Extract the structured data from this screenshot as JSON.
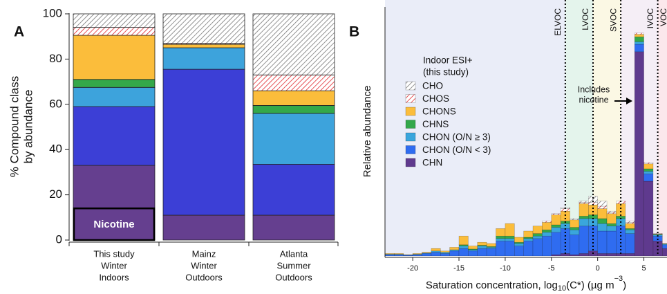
{
  "chart_data": [
    {
      "type": "stacked-bar",
      "panel_label": "A",
      "ylabel": [
        "% Compound class",
        "by abundance"
      ],
      "categories": [
        [
          "This study",
          "Winter",
          "Indoors"
        ],
        [
          "Mainz",
          "Winter",
          "Outdoors"
        ],
        [
          "Atlanta",
          "Summer",
          "Outdoors"
        ]
      ],
      "ylim": [
        0,
        100
      ],
      "yticks": [
        0,
        20,
        40,
        60,
        80,
        100
      ],
      "series": [
        {
          "color": "#653f8f",
          "values": [
            33,
            11,
            11
          ]
        },
        {
          "color": "#3c3fd6",
          "values": [
            26,
            64.5,
            22.5
          ]
        },
        {
          "color": "#3da3dc",
          "values": [
            8.5,
            9.5,
            22.5
          ]
        },
        {
          "color": "#34a84a",
          "values": [
            3.5,
            0,
            3.5
          ]
        },
        {
          "color": "#fbbd3b",
          "values": [
            19.5,
            1.5,
            6.5
          ]
        },
        {
          "color": "#e0262b",
          "hatch": true,
          "values": [
            3.5,
            0.5,
            7
          ]
        },
        {
          "color": "#777777",
          "hatch": true,
          "values": [
            6,
            13,
            27
          ]
        }
      ],
      "highlight": {
        "label": "Nicotine",
        "value": 14
      }
    },
    {
      "type": "stacked-histogram",
      "panel_label": "B",
      "xlabel": [
        "Saturation concentration, log",
        "10",
        "(C*) (µg m",
        "−3",
        ")"
      ],
      "ylabel": "Relative abundance",
      "xlim": [
        -23,
        7.5
      ],
      "ylim": [
        0,
        100
      ],
      "xticks": [
        -20,
        -15,
        -10,
        -5,
        0,
        5
      ],
      "bins": [
        -23,
        -22,
        -21,
        -20,
        -19,
        -18,
        -17,
        -16,
        -15,
        -14,
        -13,
        -12,
        -11,
        -10,
        -9,
        -8,
        -7,
        -6,
        -5,
        -4,
        -3,
        -2,
        -1,
        0,
        1,
        2,
        3,
        4,
        5,
        6,
        7,
        8
      ],
      "legend_title": [
        "Indoor ESI+",
        "(this study)"
      ],
      "series": [
        {
          "name": "CHN",
          "color": "#5f3a8e",
          "values": [
            0,
            0,
            0,
            0,
            0,
            0,
            0,
            0,
            0,
            0,
            0,
            0,
            0,
            0,
            0,
            0,
            0,
            0,
            0.5,
            1,
            0.5,
            1,
            2,
            1,
            1,
            1,
            1,
            82,
            30,
            6,
            3
          ]
        },
        {
          "name": "CHON (O/N < 3)",
          "color": "#2f6cf0",
          "values": [
            0.5,
            0.5,
            0.3,
            0.5,
            1,
            1.5,
            1,
            2,
            3,
            2,
            3,
            3,
            6,
            6,
            4,
            6,
            7,
            8,
            9,
            10,
            8,
            11,
            10,
            9,
            9,
            11,
            8,
            3,
            3,
            2,
            1.5
          ]
        },
        {
          "name": "CHON (O/N ≥ 3)",
          "color": "#3aa6dc",
          "values": [
            0.2,
            0.2,
            0.1,
            0.2,
            0.2,
            0.5,
            0.5,
            0.5,
            1,
            0.5,
            1,
            0.5,
            1,
            1,
            1,
            1,
            1,
            1.5,
            2,
            2,
            2,
            3,
            3,
            3,
            2,
            3,
            1.5,
            1,
            1,
            0.5,
            0.3
          ]
        },
        {
          "name": "CHNS",
          "color": "#33a84a",
          "values": [
            0,
            0,
            0,
            0,
            0,
            0,
            0,
            0,
            0.5,
            0.3,
            0.3,
            0.3,
            1,
            1,
            0.5,
            0.5,
            1,
            1,
            1,
            1,
            1,
            1,
            1.5,
            2,
            1,
            1,
            0.5,
            2,
            1,
            0.2,
            0.1
          ]
        },
        {
          "name": "CHONS",
          "color": "#fbbd3b",
          "values": [
            0.3,
            0.3,
            0.1,
            0.3,
            0.3,
            1,
            0.5,
            1,
            3.5,
            1.2,
            1.2,
            1.2,
            3,
            5,
            2,
            2.5,
            3,
            3,
            4,
            4,
            3,
            5,
            4,
            4,
            4,
            5,
            2,
            1,
            2,
            0.2,
            0.1
          ]
        },
        {
          "name": "CHOS",
          "color": "#e0262b",
          "hatch": true,
          "values": [
            0,
            0,
            0,
            0,
            0,
            0,
            0,
            0,
            0,
            0,
            0,
            0,
            0,
            0,
            0,
            0,
            0,
            0.5,
            0.5,
            1,
            0,
            0.5,
            1,
            1,
            0.5,
            1,
            0.5,
            0.5,
            0.5,
            0.1,
            0
          ]
        },
        {
          "name": "CHO",
          "color": "#777777",
          "hatch": true,
          "values": [
            0,
            0,
            0,
            0,
            0,
            0,
            0,
            0,
            0,
            0,
            0,
            0,
            0,
            0,
            0,
            0,
            0,
            0,
            0,
            0.5,
            0.5,
            0.5,
            2.5,
            2,
            0.5,
            0,
            0.5,
            0,
            0,
            0,
            0
          ]
        }
      ],
      "volatility_classes": [
        "ELVOC",
        "LVOC",
        "SVOC",
        "IVOC",
        "VOC"
      ],
      "class_boundaries": [
        -3.5,
        -0.5,
        2.5,
        6.5
      ],
      "class_colors": [
        "#eaedf8",
        "#e4f4ec",
        "#fbf8e4",
        "#f5eef6",
        "#fbe8ec"
      ],
      "annotation": [
        "Includes",
        "nicotine"
      ]
    }
  ]
}
